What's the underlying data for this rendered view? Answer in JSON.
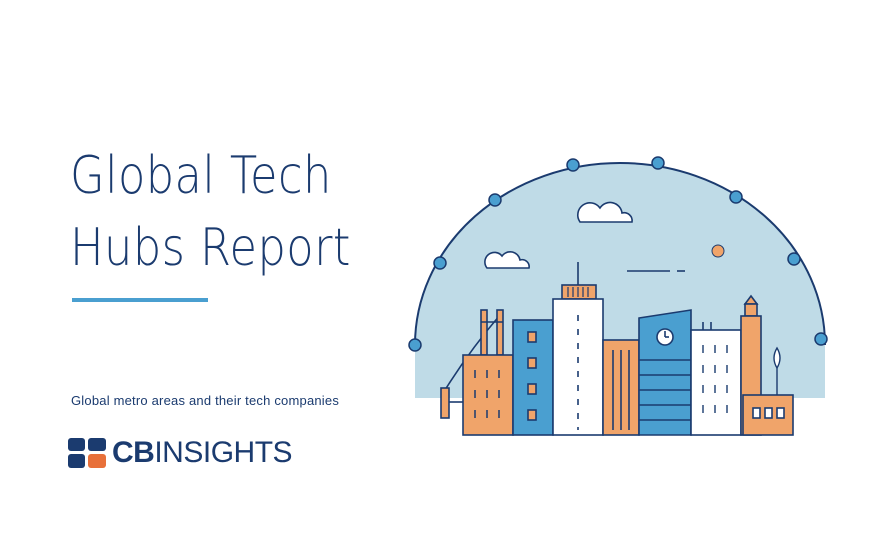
{
  "title": {
    "line1": "Global Tech",
    "line2": "Hubs Report"
  },
  "subtitle": "Global metro areas and their tech companies",
  "logo": {
    "brand_bold": "CB",
    "brand_light": "INSIGHTS",
    "mark_icon": "cb-insights-logo-mark-icon"
  },
  "illustration": {
    "icon": "city-skyline-dome-icon"
  },
  "colors": {
    "navy": "#1b3b6f",
    "accent_blue": "#4a9fd0",
    "dome_fill": "#bfdbe7",
    "orange": "#f0a46a",
    "logo_orange": "#e8703a"
  }
}
